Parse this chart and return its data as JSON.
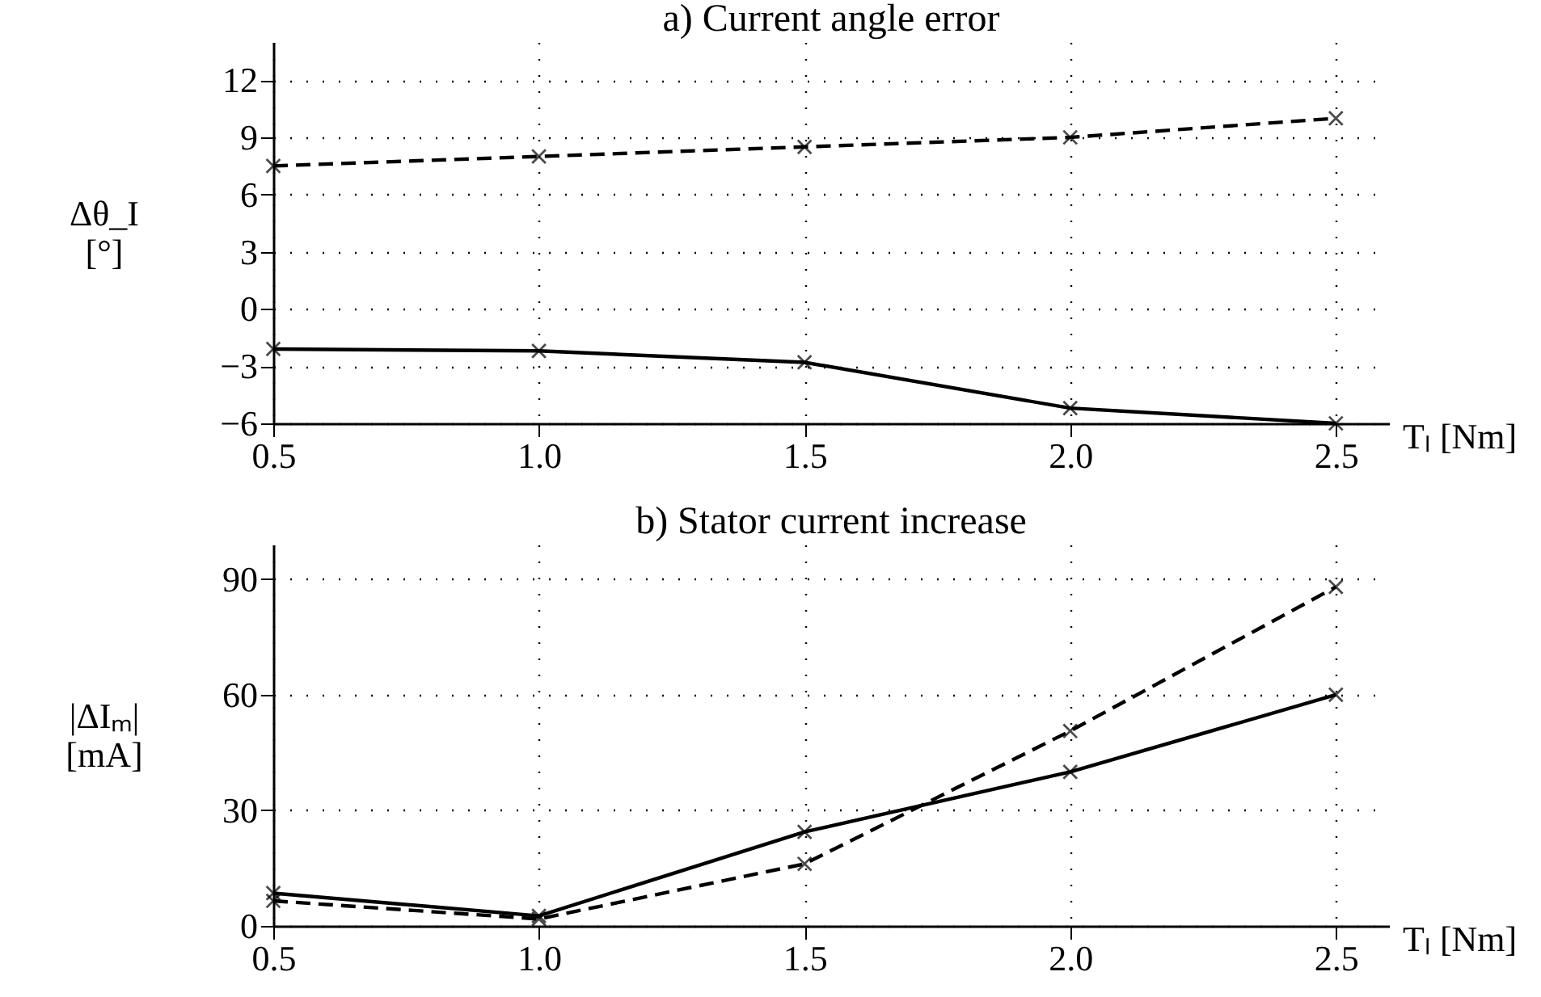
{
  "chart_data": [
    {
      "type": "line",
      "title": "a) Current angle error",
      "xlabel": "Tₗ [Nm]",
      "ylabel": "Δθ_I [°]",
      "x": [
        0.5,
        1.0,
        1.5,
        2.0,
        2.5
      ],
      "xlim": [
        0.5,
        2.6
      ],
      "xticks": [
        {
          "value": 0.5,
          "label": "0.5"
        },
        {
          "value": 1.0,
          "label": "1.0"
        },
        {
          "value": 1.5,
          "label": "1.5"
        },
        {
          "value": 2.0,
          "label": "2.0"
        },
        {
          "value": 2.5,
          "label": "2.5"
        }
      ],
      "ylim": [
        -6,
        14
      ],
      "yticks": [
        -6,
        -3,
        0,
        3,
        6,
        9,
        12
      ],
      "grid": true,
      "marker": "cross",
      "series": [
        {
          "color": "#000000",
          "line_style": "dashed",
          "values": [
            7.5,
            8.0,
            8.5,
            9.0,
            10.0
          ]
        },
        {
          "color": "#000000",
          "line_style": "solid",
          "values": [
            -2.1,
            -2.2,
            -2.8,
            -5.2,
            -6.0
          ]
        }
      ]
    },
    {
      "type": "line",
      "title": "b) Stator current increase",
      "xlabel": "Tₗ [Nm]",
      "ylabel": "|ΔIₘ| [mA]",
      "x": [
        0.5,
        1.0,
        1.5,
        2.0,
        2.5
      ],
      "xlim": [
        0.5,
        2.6
      ],
      "xticks": [
        {
          "value": 0.5,
          "label": "0.5"
        },
        {
          "value": 1.0,
          "label": "1.0"
        },
        {
          "value": 1.5,
          "label": "1.5"
        },
        {
          "value": 2.0,
          "label": "2.0"
        },
        {
          "value": 2.5,
          "label": "2.5"
        }
      ],
      "ylim": [
        0,
        99
      ],
      "yticks": [
        0,
        30,
        60,
        90
      ],
      "grid": true,
      "marker": "cross",
      "series": [
        {
          "color": "#000000",
          "line_style": "solid",
          "values": [
            8.5,
            2.6,
            24.4,
            40,
            60
          ]
        },
        {
          "color": "#000000",
          "line_style": "dashed",
          "values": [
            6.5,
            1.8,
            16.1,
            50.6,
            88
          ]
        }
      ]
    }
  ]
}
